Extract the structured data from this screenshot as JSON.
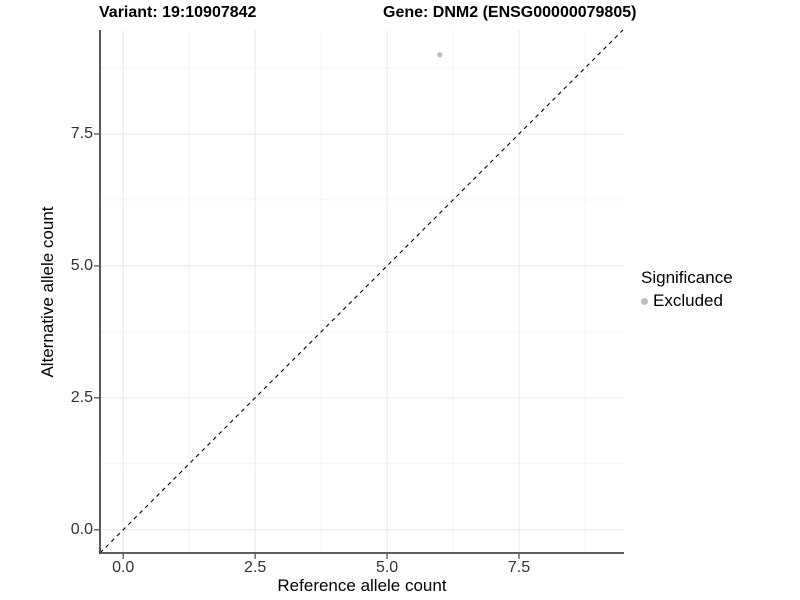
{
  "chart_data": {
    "type": "scatter",
    "title_left": "Variant: 19:10907842",
    "title_right": "Gene: DNM2 (ENSG00000079805)",
    "xlabel": "Reference allele count",
    "ylabel": "Alternative allele count",
    "xlim": [
      -0.44,
      9.49
    ],
    "ylim": [
      -0.44,
      9.47
    ],
    "xticks": [
      0,
      2.5,
      5,
      7.5
    ],
    "xtick_labels": [
      "0.0",
      "2.5",
      "5.0",
      "7.5"
    ],
    "yticks": [
      0,
      2.5,
      5,
      7.5
    ],
    "ytick_labels": [
      "0.0",
      "2.5",
      "5.0",
      "7.5"
    ],
    "xticks_minor": [
      1.25,
      3.75,
      6.25,
      8.75
    ],
    "yticks_minor": [
      1.25,
      3.75,
      6.25,
      8.75
    ],
    "grid": "major-and-minor",
    "points": [
      {
        "x": 6,
        "y": 9,
        "significance": "Excluded"
      }
    ],
    "abline": {
      "slope": 1,
      "intercept": 0,
      "linetype": "dashed"
    },
    "legend": {
      "position": "right",
      "title": "Significance",
      "items": [
        {
          "label": "Excluded",
          "color": "#bdbdbd"
        }
      ]
    },
    "colors": {
      "background": "#ffffff",
      "point": "#bdbdbd",
      "abline": "#000000",
      "grid_major": "#e7e7e7",
      "grid_minor": "#f3f3f3",
      "axis_line": "#454545",
      "tick_mark": "#454545",
      "tick_label": "#333333",
      "title": "#000000"
    }
  }
}
